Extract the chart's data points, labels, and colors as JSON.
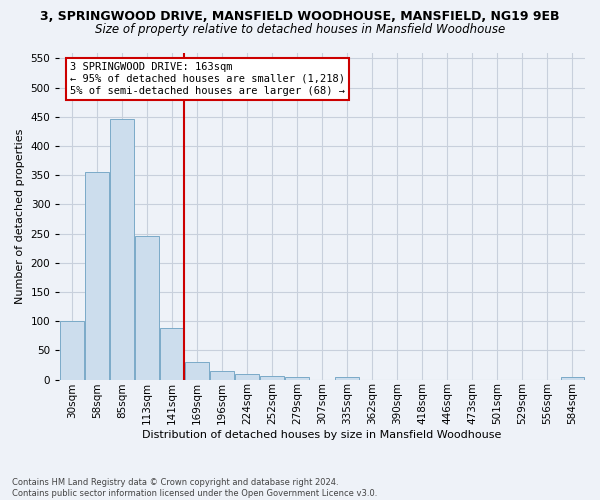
{
  "title_line1": "3, SPRINGWOOD DRIVE, MANSFIELD WOODHOUSE, MANSFIELD, NG19 9EB",
  "title_line2": "Size of property relative to detached houses in Mansfield Woodhouse",
  "xlabel": "Distribution of detached houses by size in Mansfield Woodhouse",
  "ylabel": "Number of detached properties",
  "footnote": "Contains HM Land Registry data © Crown copyright and database right 2024.\nContains public sector information licensed under the Open Government Licence v3.0.",
  "bin_labels": [
    "30sqm",
    "58sqm",
    "85sqm",
    "113sqm",
    "141sqm",
    "169sqm",
    "196sqm",
    "224sqm",
    "252sqm",
    "279sqm",
    "307sqm",
    "335sqm",
    "362sqm",
    "390sqm",
    "418sqm",
    "446sqm",
    "473sqm",
    "501sqm",
    "529sqm",
    "556sqm",
    "584sqm"
  ],
  "bar_values": [
    101,
    356,
    446,
    246,
    88,
    30,
    14,
    10,
    6,
    5,
    0,
    5,
    0,
    0,
    0,
    0,
    0,
    0,
    0,
    0,
    5
  ],
  "bar_color": "#ccdded",
  "bar_edge_color": "#7aaac8",
  "grid_color": "#c8d0dc",
  "background_color": "#eef2f8",
  "vline_color": "#cc0000",
  "vline_pos": 4.5,
  "annotation_text": "3 SPRINGWOOD DRIVE: 163sqm\n← 95% of detached houses are smaller (1,218)\n5% of semi-detached houses are larger (68) →",
  "annotation_box_color": "#ffffff",
  "annotation_box_edge": "#cc0000",
  "ylim": [
    0,
    560
  ],
  "yticks": [
    0,
    50,
    100,
    150,
    200,
    250,
    300,
    350,
    400,
    450,
    500,
    550
  ],
  "title1_fontsize": 9,
  "title2_fontsize": 8.5,
  "ylabel_fontsize": 8,
  "xlabel_fontsize": 8,
  "tick_fontsize": 7.5,
  "annot_fontsize": 7.5,
  "footnote_fontsize": 6
}
